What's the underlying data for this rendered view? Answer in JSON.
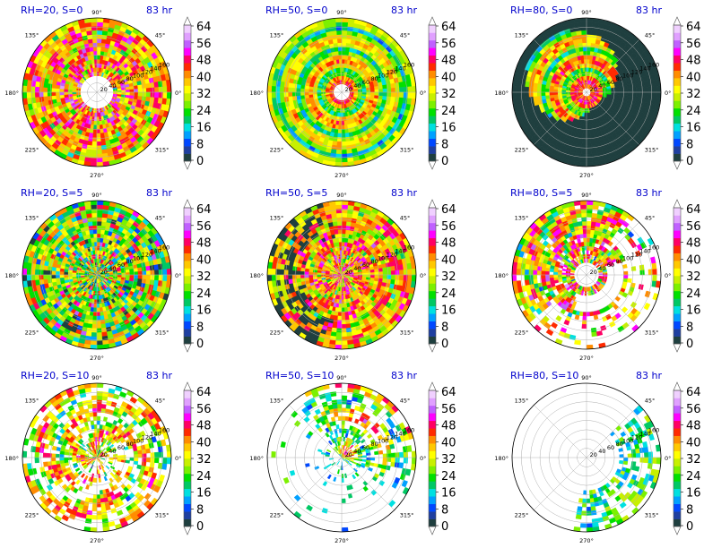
{
  "figure": {
    "time_label": "83 hr",
    "azimuth_labels": [
      "90°",
      "135°",
      "45°",
      "180°",
      "0°",
      "225°",
      "315°",
      "270°"
    ],
    "radial_ticks": [
      "20",
      "40",
      "60",
      "80",
      "100",
      "120",
      "140",
      "160"
    ],
    "colorbar_ticks": [
      "64",
      "56",
      "48",
      "40",
      "32",
      "24",
      "16",
      "8",
      "0"
    ],
    "colorbar_colors": [
      "#1f3f3f",
      "#1f3fa0",
      "#0048ff",
      "#00a0ff",
      "#00e0e0",
      "#00c864",
      "#00e000",
      "#7cf000",
      "#c8f000",
      "#ffff00",
      "#ffc800",
      "#ff8c00",
      "#ff2a00",
      "#ff0064",
      "#ff00ff",
      "#c060ff",
      "#e0a0ff",
      "#f0d0ff"
    ]
  },
  "chart_data": [
    {
      "type": "heatmap",
      "title": "RH=20, S=0",
      "time": "83 hr",
      "projection": "polar",
      "colorbar_range": [
        0,
        64
      ],
      "colorbar_ticks": [
        0,
        8,
        16,
        24,
        32,
        40,
        48,
        56,
        64
      ],
      "radial_ticks": [
        20,
        40,
        60,
        80,
        100,
        120,
        140,
        160
      ],
      "pattern": "spiral",
      "fill": 0.82,
      "eye_radius": 0.2,
      "intensity": 0.8,
      "density": 1.0
    },
    {
      "type": "heatmap",
      "title": "RH=50, S=0",
      "time": "83 hr",
      "projection": "polar",
      "colorbar_range": [
        0,
        64
      ],
      "colorbar_ticks": [
        0,
        8,
        16,
        24,
        32,
        40,
        48,
        56,
        64
      ],
      "radial_ticks": [
        20,
        40,
        60,
        80,
        100,
        120,
        140,
        160
      ],
      "pattern": "rings",
      "fill": 0.95,
      "eye_radius": 0.1,
      "intensity": 0.6,
      "density": 1.0
    },
    {
      "type": "heatmap",
      "title": "RH=80, S=0",
      "time": "83 hr",
      "projection": "polar",
      "colorbar_range": [
        0,
        64
      ],
      "colorbar_ticks": [
        0,
        8,
        16,
        24,
        32,
        40,
        48,
        56,
        64
      ],
      "radial_ticks": [
        20,
        40,
        60,
        80,
        100,
        120,
        140,
        160
      ],
      "pattern": "rings",
      "fill": 0.78,
      "eye_radius": 0.08,
      "intensity": 0.75,
      "density": 1.0
    },
    {
      "type": "heatmap",
      "title": "RH=20, S=5",
      "time": "83 hr",
      "projection": "polar",
      "colorbar_range": [
        0,
        64
      ],
      "colorbar_ticks": [
        0,
        8,
        16,
        24,
        32,
        40,
        48,
        56,
        64
      ],
      "radial_ticks": [
        20,
        40,
        60,
        80,
        100,
        120,
        140,
        160
      ],
      "pattern": "spots",
      "fill": 0.95,
      "eye_radius": 0.0,
      "intensity": 0.55,
      "density": 1.0
    },
    {
      "type": "heatmap",
      "title": "RH=50, S=5",
      "time": "83 hr",
      "projection": "polar",
      "colorbar_range": [
        0,
        64
      ],
      "colorbar_ticks": [
        0,
        8,
        16,
        24,
        32,
        40,
        48,
        56,
        64
      ],
      "radial_ticks": [
        20,
        40,
        60,
        80,
        100,
        120,
        140,
        160
      ],
      "pattern": "spiral",
      "fill": 0.95,
      "eye_radius": 0.0,
      "intensity": 0.7,
      "density": 1.0
    },
    {
      "type": "heatmap",
      "title": "RH=80, S=5",
      "time": "83 hr",
      "projection": "polar",
      "colorbar_range": [
        0,
        64
      ],
      "colorbar_ticks": [
        0,
        8,
        16,
        24,
        32,
        40,
        48,
        56,
        64
      ],
      "radial_ticks": [
        20,
        40,
        60,
        80,
        100,
        120,
        140,
        160
      ],
      "pattern": "crescent",
      "fill": 0.85,
      "eye_radius": 0.15,
      "intensity": 0.75,
      "density": 0.9
    },
    {
      "type": "heatmap",
      "title": "RH=20, S=10",
      "time": "83 hr",
      "projection": "polar",
      "colorbar_range": [
        0,
        64
      ],
      "colorbar_ticks": [
        0,
        8,
        16,
        24,
        32,
        40,
        48,
        56,
        64
      ],
      "radial_ticks": [
        20,
        40,
        60,
        80,
        100,
        120,
        140,
        160
      ],
      "pattern": "bands",
      "fill": 0.75,
      "eye_radius": 0.0,
      "intensity": 0.55,
      "density": 0.75
    },
    {
      "type": "heatmap",
      "title": "RH=50, S=10",
      "time": "83 hr",
      "projection": "polar",
      "colorbar_range": [
        0,
        64
      ],
      "colorbar_ticks": [
        0,
        8,
        16,
        24,
        32,
        40,
        48,
        56,
        64
      ],
      "radial_ticks": [
        20,
        40,
        60,
        80,
        100,
        120,
        140,
        160
      ],
      "pattern": "northeast",
      "fill": 0.6,
      "eye_radius": 0.0,
      "intensity": 0.6,
      "density": 0.55
    },
    {
      "type": "heatmap",
      "title": "RH=80, S=10",
      "time": "83 hr",
      "projection": "polar",
      "colorbar_range": [
        0,
        64
      ],
      "colorbar_ticks": [
        0,
        8,
        16,
        24,
        32,
        40,
        48,
        56,
        64
      ],
      "radial_ticks": [
        20,
        40,
        60,
        80,
        100,
        120,
        140,
        160
      ],
      "pattern": "sparse",
      "fill": 0.2,
      "eye_radius": 0.0,
      "intensity": 0.45,
      "density": 0.15
    }
  ]
}
